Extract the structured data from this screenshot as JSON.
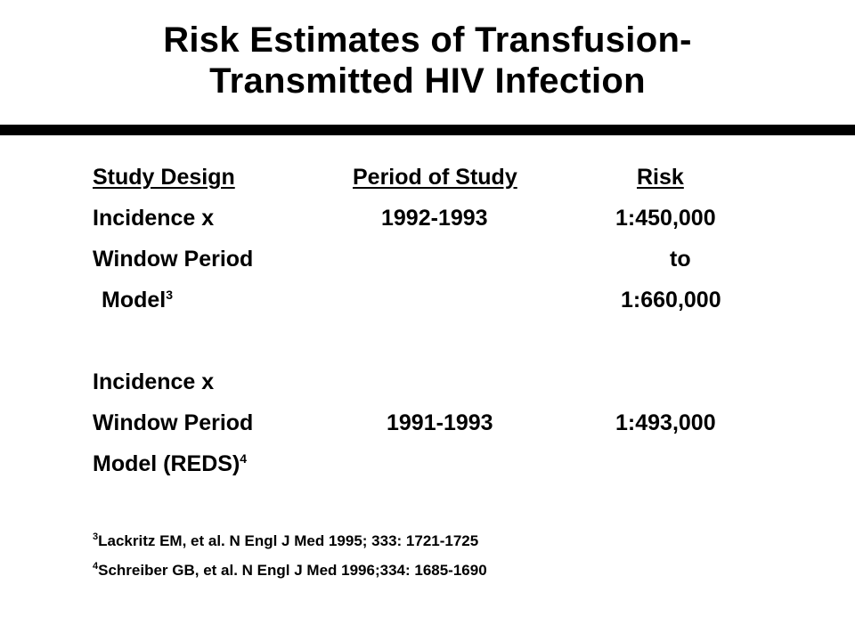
{
  "title": {
    "line1": "Risk Estimates of Transfusion-",
    "line2": "Transmitted HIV Infection"
  },
  "table": {
    "headers": [
      "Study Design",
      "Period of Study",
      "Risk"
    ],
    "study1": {
      "design_line1": "Incidence x",
      "design_line2": "Window Period",
      "design_line3": "Model",
      "design_ref": "3",
      "period": "1992-1993",
      "risk_line1": "1:450,000",
      "risk_line2": "to",
      "risk_line3": "1:660,000"
    },
    "study2": {
      "design_line1": "Incidence x",
      "design_line2": "Window Period",
      "design_line3": "Model (REDS)",
      "design_ref": "4",
      "period": "1991-1993",
      "risk": "1:493,000"
    }
  },
  "references": [
    {
      "number": "3",
      "text": "Lackritz EM, et al. N Engl J Med 1995; 333: 1721-1725"
    },
    {
      "number": "4",
      "text": "Schreiber GB, et al. N Engl J Med 1996;334: 1685-1690"
    }
  ]
}
